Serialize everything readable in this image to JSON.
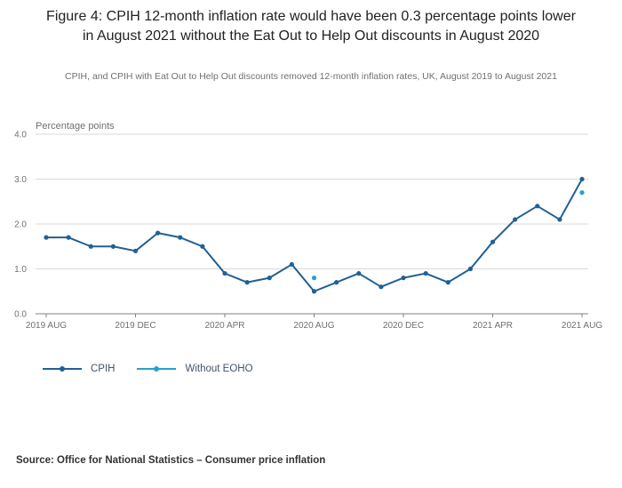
{
  "title": "Figure 4: CPIH 12-month inflation rate would have been 0.3 percentage points lower in August 2021 without the Eat Out to Help Out discounts in August 2020",
  "subtitle": "CPIH, and CPIH with Eat Out to Help Out discounts removed 12-month inflation rates, UK, August 2019 to August 2021",
  "unit_label": "Percentage points",
  "source": "Source: Office for National Statistics – Consumer price inflation",
  "legend": [
    {
      "label": "CPIH",
      "color": "#206095"
    },
    {
      "label": "Without EOHO",
      "color": "#27a0cc"
    }
  ],
  "chart_data": {
    "type": "line",
    "title": "Figure 4: CPIH 12-month inflation rate would have been 0.3 percentage points lower in August 2021 without the Eat Out to Help Out discounts in August 2020",
    "ylabel": "Percentage points",
    "xlabel": "",
    "ylim": [
      0,
      4
    ],
    "grid": "horizontal",
    "grid_color": "#d9d9d9",
    "axis_color": "#7f7f7f",
    "legend_position": "bottom-left",
    "x": [
      "2019 AUG",
      "2019 SEP",
      "2019 OCT",
      "2019 NOV",
      "2019 DEC",
      "2020 JAN",
      "2020 FEB",
      "2020 MAR",
      "2020 APR",
      "2020 MAY",
      "2020 JUN",
      "2020 JUL",
      "2020 AUG",
      "2020 SEP",
      "2020 OCT",
      "2020 NOV",
      "2020 DEC",
      "2021 JAN",
      "2021 FEB",
      "2021 MAR",
      "2021 APR",
      "2021 MAY",
      "2021 JUN",
      "2021 JUL",
      "2021 AUG"
    ],
    "x_tick_labels": [
      "2019 AUG",
      "2019 DEC",
      "2020 APR",
      "2020 AUG",
      "2020 DEC",
      "2021 APR",
      "2021 AUG"
    ],
    "x_tick_indices": [
      0,
      4,
      8,
      12,
      16,
      20,
      24
    ],
    "y_ticks": [
      "0.0",
      "1.0",
      "2.0",
      "3.0",
      "4.0"
    ],
    "series": [
      {
        "name": "CPIH",
        "color": "#206095",
        "values": [
          1.7,
          1.7,
          1.5,
          1.5,
          1.4,
          1.8,
          1.7,
          1.5,
          0.9,
          0.7,
          0.8,
          1.1,
          0.5,
          0.7,
          0.9,
          0.6,
          0.8,
          0.9,
          0.7,
          1.0,
          1.6,
          2.1,
          2.4,
          2.1,
          3.0
        ]
      },
      {
        "name": "Without EOHO",
        "color": "#27a0cc",
        "values": [
          null,
          null,
          null,
          null,
          null,
          null,
          null,
          null,
          null,
          null,
          null,
          null,
          0.8,
          null,
          null,
          null,
          null,
          null,
          null,
          null,
          null,
          null,
          null,
          null,
          2.7
        ]
      }
    ]
  }
}
